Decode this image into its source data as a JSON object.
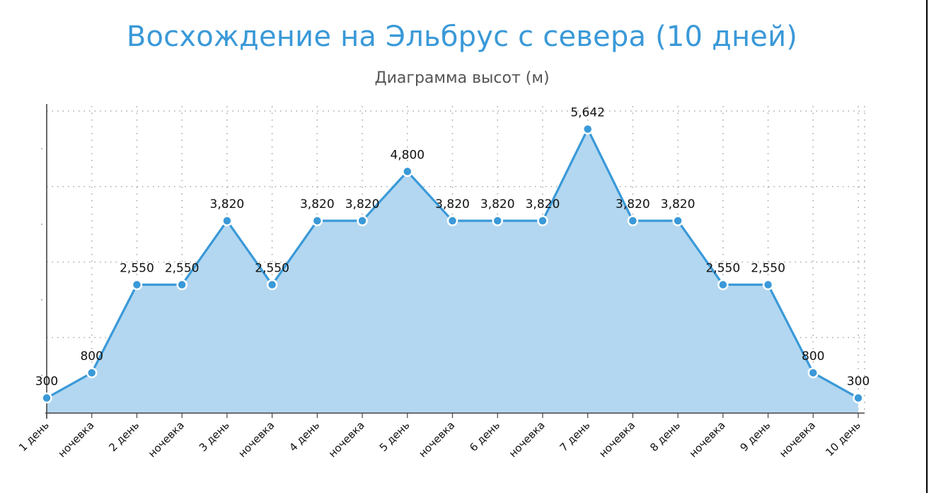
{
  "chart_data": {
    "type": "area",
    "title": "Восхождение на Эльбрус с севера (10 дней)",
    "subtitle": "Диаграмма высот (м)",
    "xlabel": "",
    "ylabel": "",
    "categories": [
      "1 день",
      "ночевка",
      "2 день",
      "ночевка",
      "3 день",
      "ночевка",
      "4 день",
      "ночевка",
      "5 день",
      "ночевка",
      "6 день",
      "ночевка",
      "7 день",
      "ночевка",
      "8 день",
      "ночевка",
      "9 день",
      "ночевка",
      "10 день"
    ],
    "values": [
      300,
      800,
      2550,
      2550,
      3820,
      2550,
      3820,
      3820,
      4800,
      3820,
      3820,
      3820,
      5642,
      3820,
      3820,
      2550,
      2550,
      800,
      300
    ],
    "value_labels": [
      "300",
      "800",
      "2,550",
      "2,550",
      "3,820",
      "2,550",
      "3,820",
      "3,820",
      "4,800",
      "3,820",
      "3,820",
      "3,820",
      "5,642",
      "3,820",
      "3,820",
      "2,550",
      "2,550",
      "800",
      "300"
    ],
    "ylim": [
      0,
      6000
    ],
    "grid": true,
    "legend": "none",
    "colors": {
      "title": "#3a99d8",
      "subtitle": "#555555",
      "line": "#3a99d8",
      "area": "#b3d7f0",
      "marker_fill": "#3a99d8",
      "marker_stroke": "#ffffff",
      "grid": "#a8a8a8",
      "axis": "#444444"
    }
  }
}
